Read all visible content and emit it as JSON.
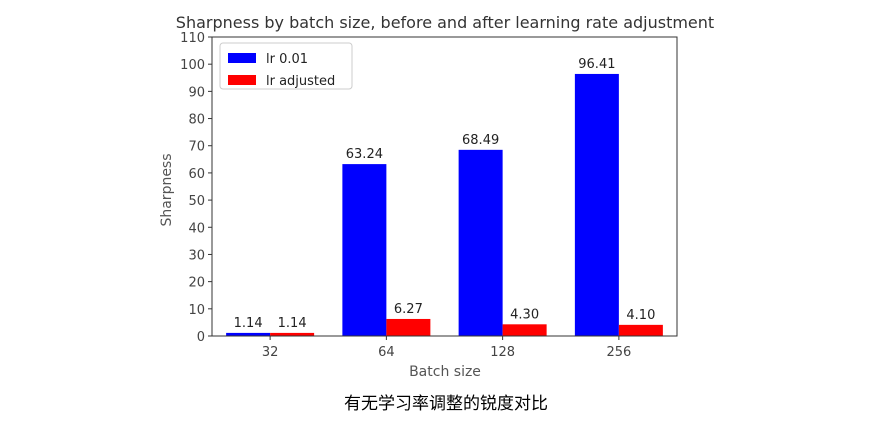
{
  "caption": "有无学习率调整的锐度对比",
  "chart_data": {
    "type": "bar",
    "title": "Sharpness by batch size, before and after learning rate adjustment",
    "xlabel": "Batch size",
    "ylabel": "Sharpness",
    "categories": [
      "32",
      "64",
      "128",
      "256"
    ],
    "ylim": [
      0,
      110
    ],
    "yticks": [
      0,
      10,
      20,
      30,
      40,
      50,
      60,
      70,
      80,
      90,
      100,
      110
    ],
    "legend_position": "top-left",
    "grid": false,
    "series": [
      {
        "name": "lr 0.01",
        "color": "#0000ff",
        "values": [
          1.14,
          63.24,
          68.49,
          96.41
        ],
        "labels": [
          "1.14",
          "63.24",
          "68.49",
          "96.41"
        ]
      },
      {
        "name": "lr adjusted",
        "color": "#ff0000",
        "values": [
          1.14,
          6.27,
          4.3,
          4.1
        ],
        "labels": [
          "1.14",
          "6.27",
          "4.30",
          "4.10"
        ]
      }
    ]
  }
}
